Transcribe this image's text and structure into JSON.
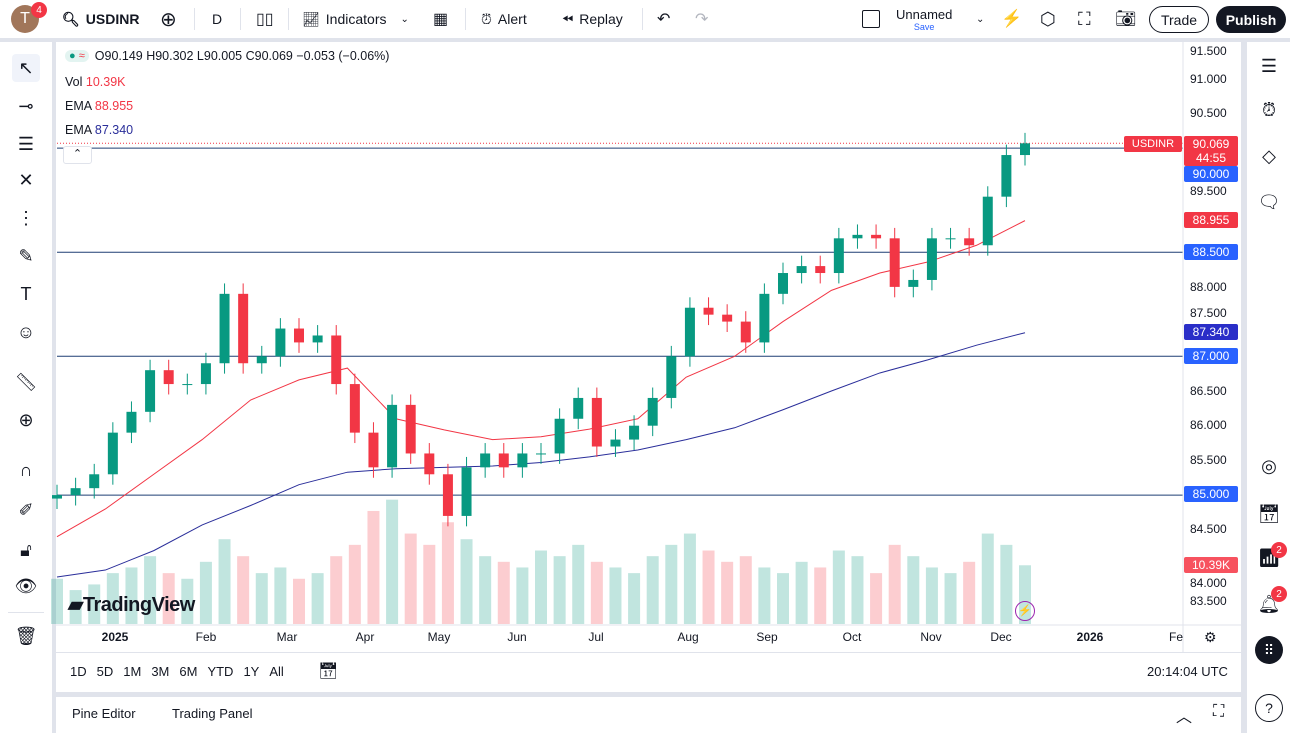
{
  "toolbar": {
    "avatar_letter": "T",
    "avatar_badge": "4",
    "symbol": "USDINR",
    "interval": "D",
    "indicators": "Indicators",
    "alert": "Alert",
    "replay": "Replay",
    "layout_name": "Unnamed",
    "save": "Save",
    "trade": "Trade",
    "publish": "Publish"
  },
  "legend": {
    "ohlc": "O90.149 H90.302 L90.005 C90.069 −0.053 (−0.06%)",
    "vol_label": "Vol",
    "vol_value": "10.39K",
    "ema1_label": "EMA",
    "ema1_value": "88.955",
    "ema2_label": "EMA",
    "ema2_value": "87.340"
  },
  "price_axis": {
    "ticks": [
      "91.500",
      "91.000",
      "90.500",
      "89.500",
      "88.000",
      "87.500",
      "86.500",
      "86.000",
      "85.500",
      "84.500",
      "84.000",
      "83.500"
    ],
    "labels": {
      "symbol": "USDINR",
      "last": "90.069",
      "countdown": "44:55",
      "h1": "90.000",
      "ema1": "88.955",
      "h2": "88.500",
      "ema2": "87.340",
      "h3": "87.000",
      "h4": "85.000",
      "vol": "10.39K"
    }
  },
  "time_axis": {
    "labels": [
      "2025",
      "Feb",
      "Mar",
      "Apr",
      "May",
      "Jun",
      "Jul",
      "Aug",
      "Sep",
      "Oct",
      "Nov",
      "Dec",
      "2026",
      "Fe"
    ]
  },
  "ranges": [
    "1D",
    "5D",
    "1M",
    "3M",
    "6M",
    "YTD",
    "1Y",
    "All"
  ],
  "clock": "20:14:04 UTC",
  "bottom": {
    "pine": "Pine Editor",
    "trading": "Trading Panel"
  },
  "logo": "TradingView",
  "right_badges": [
    "2",
    "2"
  ],
  "colors": {
    "up": "#089981",
    "down": "#f23645",
    "ema_fast": "#f23645",
    "ema_slow": "#2a2e9a",
    "hline": "#1e3f73",
    "blue_label": "#2962ff"
  },
  "chart_data": {
    "type": "candlestick",
    "interval": "weekly approximation of daily chart",
    "ylim": [
      83.3,
      91.6
    ],
    "horizontal_lines": [
      90.0,
      88.5,
      87.0,
      85.0
    ],
    "closes": [
      85.0,
      85.1,
      85.3,
      85.9,
      86.2,
      86.8,
      86.6,
      86.6,
      86.9,
      87.9,
      86.9,
      87.0,
      87.4,
      87.2,
      87.3,
      86.6,
      85.9,
      85.4,
      86.3,
      85.6,
      85.3,
      84.7,
      85.4,
      85.6,
      85.4,
      85.6,
      85.6,
      86.1,
      86.4,
      85.7,
      85.8,
      86.0,
      86.4,
      87.0,
      87.7,
      87.6,
      87.5,
      87.2,
      87.9,
      88.2,
      88.3,
      88.2,
      88.7,
      88.75,
      88.7,
      88.0,
      88.1,
      88.7,
      88.7,
      88.6,
      89.3,
      89.9,
      90.069
    ],
    "volume_k": [
      8,
      6,
      7,
      9,
      10,
      12,
      9,
      8,
      11,
      15,
      12,
      9,
      10,
      8,
      9,
      12,
      14,
      20,
      22,
      16,
      14,
      18,
      15,
      12,
      11,
      10,
      13,
      12,
      14,
      11,
      10,
      9,
      12,
      14,
      16,
      13,
      11,
      12,
      10,
      9,
      11,
      10,
      13,
      12,
      9,
      14,
      12,
      10,
      9,
      11,
      16,
      14,
      10.39
    ],
    "ema_fast": [
      84.4,
      84.8,
      85.3,
      85.8,
      86.37,
      86.66,
      86.83,
      86.1,
      85.94,
      85.8,
      85.84,
      85.95,
      86.1,
      86.7,
      87.0,
      87.5,
      87.95,
      88.2,
      88.36,
      88.6,
      88.955
    ],
    "ema_slow": [
      83.82,
      83.92,
      84.2,
      84.57,
      84.85,
      85.15,
      85.33,
      85.38,
      85.4,
      85.42,
      85.47,
      85.55,
      85.65,
      85.8,
      85.97,
      86.23,
      86.5,
      86.76,
      86.95,
      87.16,
      87.34
    ]
  }
}
